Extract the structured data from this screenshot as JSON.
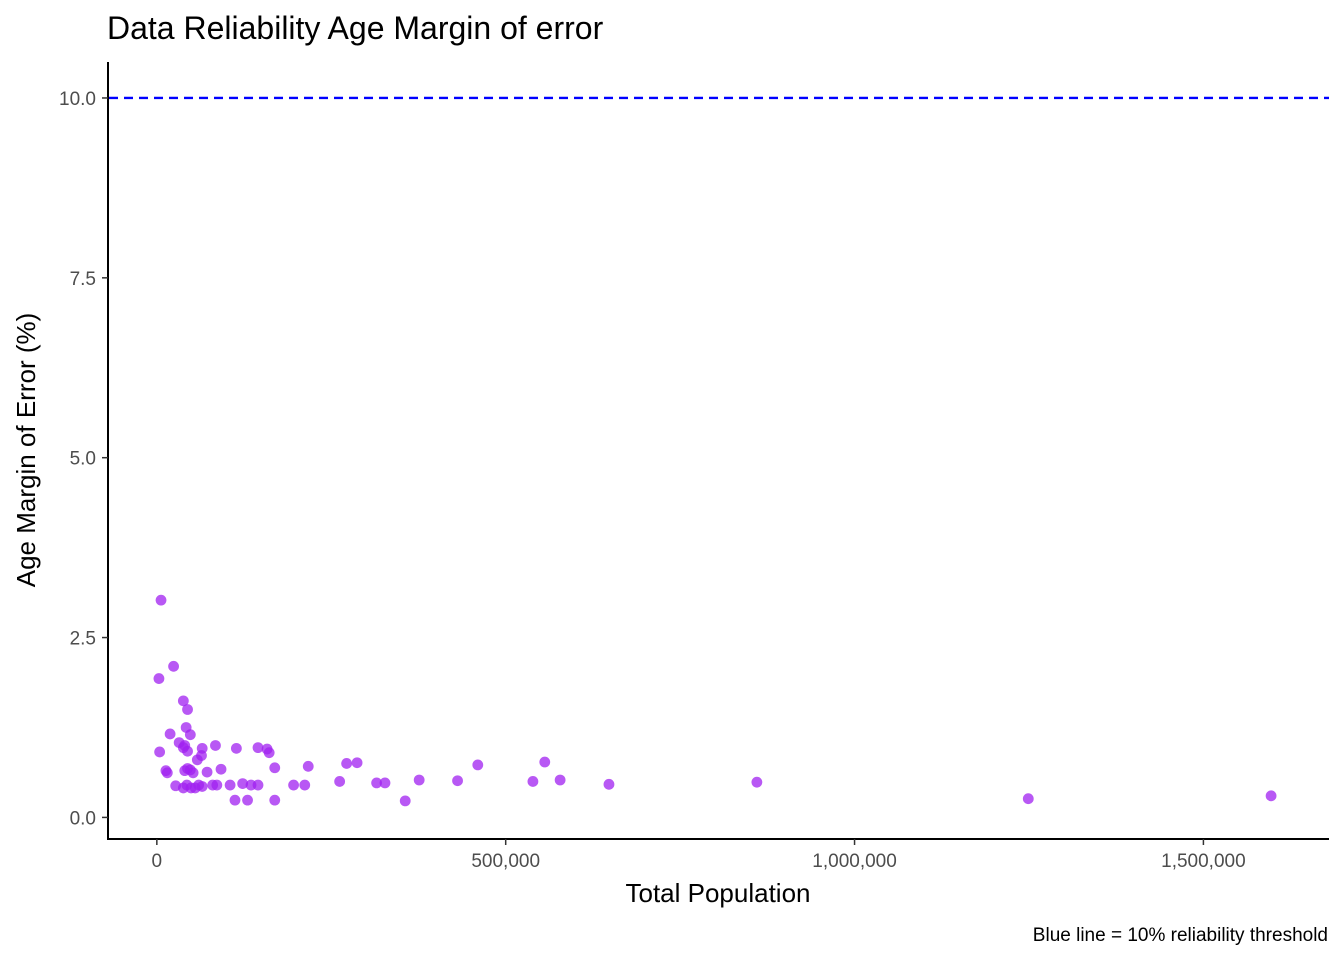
{
  "chart_data": {
    "type": "scatter",
    "title": "Data Reliability Age Margin of error",
    "xlabel": "Total Population",
    "ylabel": "Age Margin of Error (%)",
    "caption": "Blue line = 10% reliability threshold",
    "xlim": [
      -70000,
      1680000
    ],
    "ylim": [
      -0.3,
      10.5
    ],
    "x_ticks": [
      0,
      500000,
      1000000,
      1500000
    ],
    "x_tick_labels": [
      "0",
      "500,000",
      "1,000,000",
      "1,500,000"
    ],
    "y_ticks": [
      0,
      2.5,
      5,
      7.5,
      10
    ],
    "y_tick_labels": [
      "0.0",
      "2.5",
      "5.0",
      "7.5",
      "10.0"
    ],
    "threshold": {
      "y": 10,
      "color": "#0000ff",
      "style": "dashed"
    },
    "point_color": "#a020f0",
    "grid": false,
    "points": [
      [
        6000,
        3.02
      ],
      [
        3000,
        1.93
      ],
      [
        24000,
        2.1
      ],
      [
        4000,
        0.91
      ],
      [
        38000,
        1.62
      ],
      [
        44000,
        1.5
      ],
      [
        42000,
        1.25
      ],
      [
        19000,
        1.16
      ],
      [
        48000,
        1.15
      ],
      [
        32000,
        1.04
      ],
      [
        40000,
        1.0
      ],
      [
        38000,
        0.97
      ],
      [
        44000,
        0.92
      ],
      [
        65000,
        0.96
      ],
      [
        84000,
        1.0
      ],
      [
        64000,
        0.86
      ],
      [
        58000,
        0.8
      ],
      [
        72000,
        0.63
      ],
      [
        92000,
        0.67
      ],
      [
        13000,
        0.65
      ],
      [
        15000,
        0.62
      ],
      [
        40000,
        0.65
      ],
      [
        44000,
        0.68
      ],
      [
        48000,
        0.66
      ],
      [
        52000,
        0.62
      ],
      [
        27000,
        0.44
      ],
      [
        38000,
        0.41
      ],
      [
        43000,
        0.45
      ],
      [
        49000,
        0.41
      ],
      [
        55000,
        0.41
      ],
      [
        60000,
        0.45
      ],
      [
        65000,
        0.43
      ],
      [
        80000,
        0.45
      ],
      [
        86000,
        0.45
      ],
      [
        105000,
        0.45
      ],
      [
        112000,
        0.24
      ],
      [
        114000,
        0.96
      ],
      [
        123000,
        0.47
      ],
      [
        130000,
        0.24
      ],
      [
        135000,
        0.45
      ],
      [
        145000,
        0.97
      ],
      [
        145000,
        0.45
      ],
      [
        158000,
        0.95
      ],
      [
        161000,
        0.9
      ],
      [
        169000,
        0.69
      ],
      [
        169000,
        0.24
      ],
      [
        196000,
        0.45
      ],
      [
        212000,
        0.45
      ],
      [
        217000,
        0.71
      ],
      [
        262000,
        0.5
      ],
      [
        272000,
        0.75
      ],
      [
        287000,
        0.76
      ],
      [
        315000,
        0.48
      ],
      [
        327000,
        0.48
      ],
      [
        356000,
        0.23
      ],
      [
        376000,
        0.52
      ],
      [
        431000,
        0.51
      ],
      [
        460000,
        0.73
      ],
      [
        539000,
        0.5
      ],
      [
        556000,
        0.77
      ],
      [
        578000,
        0.52
      ],
      [
        648000,
        0.46
      ],
      [
        860000,
        0.49
      ],
      [
        1249000,
        0.26
      ],
      [
        1597000,
        0.3
      ]
    ]
  }
}
